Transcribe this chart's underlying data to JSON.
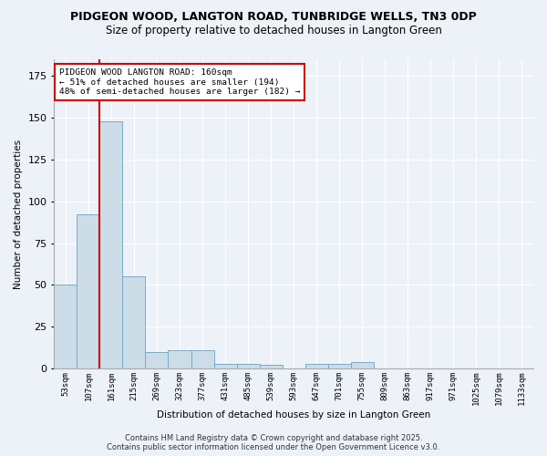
{
  "title1": "PIDGEON WOOD, LANGTON ROAD, TUNBRIDGE WELLS, TN3 0DP",
  "title2": "Size of property relative to detached houses in Langton Green",
  "xlabel": "Distribution of detached houses by size in Langton Green",
  "ylabel": "Number of detached properties",
  "bar_color": "#ccdde8",
  "bar_edge_color": "#7aaac8",
  "bin_labels": [
    "53sqm",
    "107sqm",
    "161sqm",
    "215sqm",
    "269sqm",
    "323sqm",
    "377sqm",
    "431sqm",
    "485sqm",
    "539sqm",
    "593sqm",
    "647sqm",
    "701sqm",
    "755sqm",
    "809sqm",
    "863sqm",
    "917sqm",
    "971sqm",
    "1025sqm",
    "1079sqm",
    "1133sqm"
  ],
  "values": [
    50,
    92,
    148,
    55,
    10,
    11,
    11,
    3,
    3,
    2,
    0,
    3,
    3,
    4,
    0,
    0,
    0,
    0,
    0,
    0,
    0
  ],
  "red_line_x": 1.5,
  "annotation_text": "PIDGEON WOOD LANGTON ROAD: 160sqm\n← 51% of detached houses are smaller (194)\n48% of semi-detached houses are larger (182) →",
  "annot_box_color": "#ffffff",
  "annot_box_edge": "#cc0000",
  "footnote1": "Contains HM Land Registry data © Crown copyright and database right 2025.",
  "footnote2": "Contains public sector information licensed under the Open Government Licence v3.0.",
  "ylim": [
    0,
    185
  ],
  "background_color": "#edf2f8",
  "grid_color": "#ffffff",
  "title_fontsize": 9,
  "subtitle_fontsize": 8.5
}
